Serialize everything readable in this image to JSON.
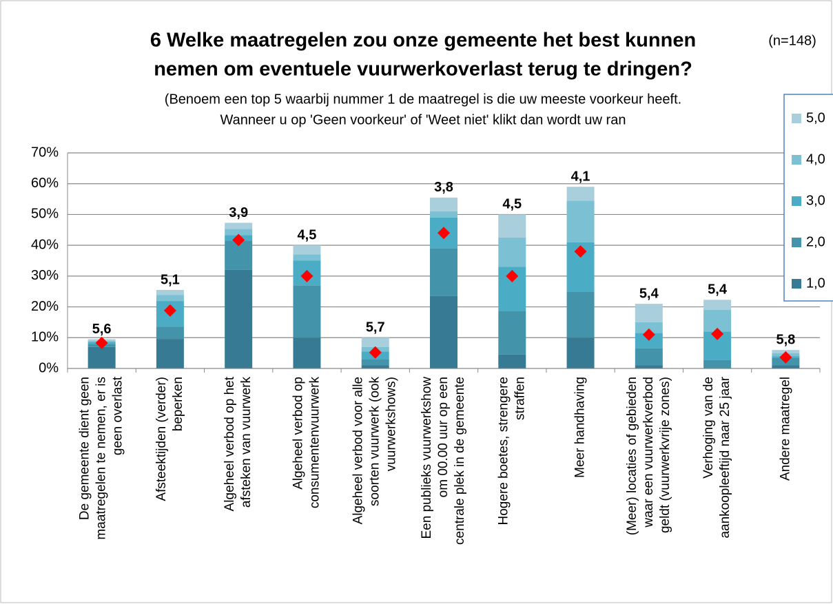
{
  "chart_data": {
    "type": "stacked_bar",
    "title": [
      "6 Welke maatregelen zou onze gemeente het best kunnen",
      "nemen om eventuele vuurwerkoverlast terug te dringen?"
    ],
    "note": "(n=148)",
    "subtitle": [
      "(Benoem een top 5 waarbij nummer 1 de maatregel is die uw meeste voorkeur heeft.",
      "Wanneer u op 'Geen voorkeur' of 'Weet niet' klikt dan wordt uw ran"
    ],
    "categories": [
      [
        "De gemeente dient geen",
        "maatregelen te nemen, er is",
        "geen overlast"
      ],
      [
        "Afsteektijden (verder)",
        "beperken"
      ],
      [
        "Algeheel verbod op het",
        "afsteken van vuurwerk"
      ],
      [
        "Algeheel verbod op",
        "consumentenvuurwerk"
      ],
      [
        "Algeheel verbod voor alle",
        "soorten vuurwerk (ook",
        "vuurwerkshows)"
      ],
      [
        "Een publieks vuurwerkshow",
        "om 00.00 uur op een",
        "centrale plek in de gemeente"
      ],
      [
        "Hogere boetes, strengere",
        "straffen"
      ],
      [
        "Meer handhaving"
      ],
      [
        "(Meer) locaties of gebieden",
        "waar een vuurwerkverbod",
        "geldt (vuurwerkvrije zones)"
      ],
      [
        "Verhoging van de",
        "aankoopleeftijd naar 25 jaar"
      ],
      [
        "Andere maatregel"
      ]
    ],
    "series": [
      {
        "name": "1,0",
        "color": "#367b93",
        "values": [
          7.0,
          9.6,
          32.0,
          10.0,
          1.0,
          23.5,
          4.5,
          10.0,
          1.0,
          0.0,
          1.0
        ]
      },
      {
        "name": "2,0",
        "color": "#4393aa",
        "values": [
          1.0,
          4.0,
          9.5,
          17.0,
          2.0,
          15.5,
          14.2,
          15.0,
          5.5,
          2.7,
          2.5
        ]
      },
      {
        "name": "3,0",
        "color": "#4bacc6",
        "values": [
          0.5,
          8.3,
          1.8,
          8.0,
          2.5,
          10.0,
          14.3,
          16.0,
          5.0,
          9.3,
          0.5
        ]
      },
      {
        "name": "4,0",
        "color": "#7cc0d4",
        "values": [
          0.5,
          2.0,
          2.0,
          2.0,
          1.5,
          2.0,
          9.5,
          13.5,
          3.5,
          7.0,
          1.0
        ]
      },
      {
        "name": "5,0",
        "color": "#a9cfdc",
        "values": [
          0.5,
          1.6,
          2.0,
          3.0,
          3.0,
          4.5,
          7.5,
          4.5,
          6.0,
          3.3,
          1.0
        ]
      }
    ],
    "markers": {
      "color": "#ff0000",
      "values": [
        8.3,
        18.8,
        41.7,
        30.0,
        5.2,
        44.0,
        30.0,
        38.0,
        11.0,
        11.2,
        3.6
      ]
    },
    "average_rank": {
      "values": [
        5.6,
        5.1,
        3.9,
        4.5,
        5.7,
        3.8,
        4.5,
        4.1,
        5.4,
        5.4,
        5.8
      ],
      "value_labels": [
        "5,6",
        "5,1",
        "3,9",
        "4,5",
        "5,7",
        "3,8",
        "4,5",
        "4,1",
        "5,4",
        "5,4",
        "5,8"
      ]
    },
    "ylim": [
      0,
      70
    ],
    "yticks": [
      {
        "value": 0,
        "label": "0%"
      },
      {
        "value": 10,
        "label": "10%"
      },
      {
        "value": 20,
        "label": "20%"
      },
      {
        "value": 30,
        "label": "30%"
      },
      {
        "value": 40,
        "label": "40%"
      },
      {
        "value": 50,
        "label": "50%"
      },
      {
        "value": 60,
        "label": "60%"
      },
      {
        "value": 70,
        "label": "70%"
      }
    ],
    "grid": true,
    "legend": "right"
  }
}
